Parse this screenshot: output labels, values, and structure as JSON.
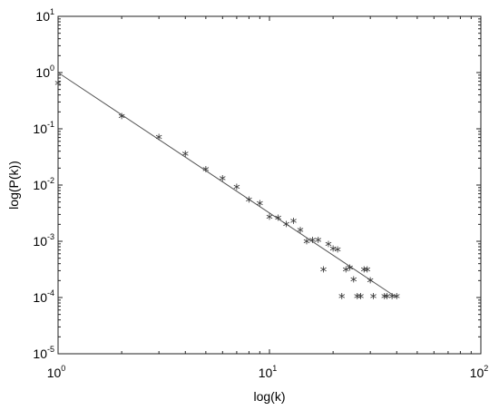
{
  "chart_data": {
    "type": "scatter",
    "title": "",
    "xlabel": "log(k)",
    "ylabel": "log(P(k))",
    "xscale": "log",
    "yscale": "log",
    "xlim": [
      1,
      100
    ],
    "ylim": [
      1e-05,
      10
    ],
    "grid": false,
    "x_ticks": [
      {
        "base": "10",
        "exp": "0",
        "value": 1
      },
      {
        "base": "10",
        "exp": "1",
        "value": 10
      },
      {
        "base": "10",
        "exp": "2",
        "value": 100
      }
    ],
    "y_ticks": [
      {
        "base": "10",
        "exp": "-5",
        "value": 1e-05
      },
      {
        "base": "10",
        "exp": "-4",
        "value": 0.0001
      },
      {
        "base": "10",
        "exp": "-3",
        "value": 0.001
      },
      {
        "base": "10",
        "exp": "-2",
        "value": 0.01
      },
      {
        "base": "10",
        "exp": "-1",
        "value": 0.1
      },
      {
        "base": "10",
        "exp": "0",
        "value": 1
      },
      {
        "base": "10",
        "exp": "1",
        "value": 10
      }
    ],
    "series": [
      {
        "kind": "points",
        "marker": "*",
        "color": "#333333",
        "x": [
          1,
          2,
          3,
          4,
          5,
          6,
          7,
          8,
          9,
          10,
          11,
          12,
          13,
          14,
          15,
          16,
          17,
          18,
          19,
          20,
          21,
          22,
          23,
          24,
          25,
          26,
          27,
          28,
          29,
          30,
          31,
          35,
          36,
          38,
          40
        ],
        "y": [
          0.62,
          0.16,
          0.068,
          0.034,
          0.018,
          0.0125,
          0.0088,
          0.0052,
          0.0045,
          0.0026,
          0.0025,
          0.0019,
          0.0022,
          0.0015,
          0.00095,
          0.001,
          0.001,
          0.0003,
          0.00085,
          0.0007,
          0.00068,
          0.0001,
          0.0003,
          0.00032,
          0.0002,
          0.0001,
          0.0001,
          0.0003,
          0.0003,
          0.00019,
          0.0001,
          0.0001,
          0.0001,
          0.0001,
          0.0001
        ]
      },
      {
        "kind": "line",
        "color": "#555555",
        "x": [
          1,
          40
        ],
        "y": [
          1,
          0.0001
        ]
      }
    ]
  }
}
